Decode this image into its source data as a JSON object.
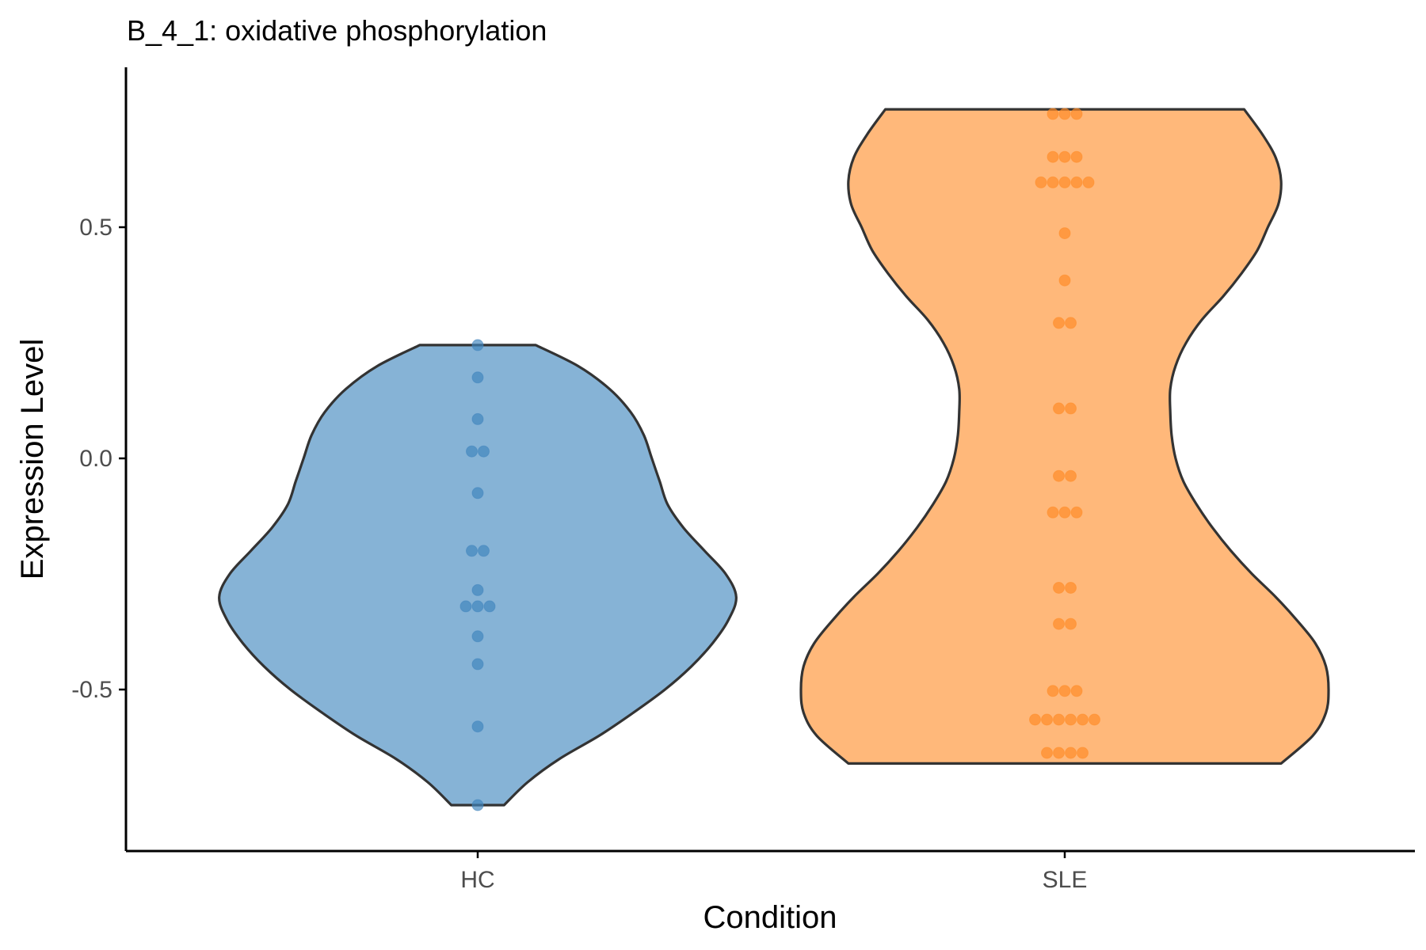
{
  "chart_data": {
    "type": "violin",
    "title": "B_4_1: oxidative phosphorylation",
    "xlabel": "Condition",
    "ylabel": "Expression Level",
    "ylim": [
      -0.85,
      0.85
    ],
    "y_ticks": [
      0.5,
      0.0,
      -0.5
    ],
    "y_tick_labels": [
      "0.5",
      "0.0",
      "-0.5"
    ],
    "grid": false,
    "legend": "none",
    "categories": [
      "HC",
      "SLE"
    ],
    "series": [
      {
        "name": "HC",
        "fill_color": "#86b3d6",
        "point_color": "#3f84bd",
        "range": [
          -0.75,
          0.245
        ],
        "violin_profile": [
          [
            -0.75,
            0.1
          ],
          [
            -0.7,
            0.19
          ],
          [
            -0.65,
            0.31
          ],
          [
            -0.6,
            0.46
          ],
          [
            -0.55,
            0.59
          ],
          [
            -0.5,
            0.71
          ],
          [
            -0.45,
            0.81
          ],
          [
            -0.4,
            0.89
          ],
          [
            -0.35,
            0.95
          ],
          [
            -0.3,
            0.98
          ],
          [
            -0.25,
            0.94
          ],
          [
            -0.2,
            0.86
          ],
          [
            -0.15,
            0.78
          ],
          [
            -0.1,
            0.72
          ],
          [
            -0.05,
            0.69
          ],
          [
            0.0,
            0.66
          ],
          [
            0.05,
            0.63
          ],
          [
            0.1,
            0.58
          ],
          [
            0.15,
            0.5
          ],
          [
            0.2,
            0.38
          ],
          [
            0.245,
            0.22
          ]
        ],
        "points": [
          0.245,
          0.175,
          0.085,
          0.015,
          0.015,
          -0.075,
          -0.2,
          -0.2,
          -0.285,
          -0.32,
          -0.32,
          -0.32,
          -0.385,
          -0.445,
          -0.58,
          -0.75
        ]
      },
      {
        "name": "SLE",
        "fill_color": "#ffb87a",
        "point_color": "#ff8b26",
        "range": [
          -0.66,
          0.755
        ],
        "violin_profile": [
          [
            -0.66,
            0.82
          ],
          [
            -0.6,
            0.94
          ],
          [
            -0.55,
            0.99
          ],
          [
            -0.5,
            1.0
          ],
          [
            -0.45,
            0.99
          ],
          [
            -0.4,
            0.95
          ],
          [
            -0.35,
            0.88
          ],
          [
            -0.3,
            0.8
          ],
          [
            -0.25,
            0.71
          ],
          [
            -0.2,
            0.63
          ],
          [
            -0.15,
            0.56
          ],
          [
            -0.1,
            0.5
          ],
          [
            -0.05,
            0.45
          ],
          [
            0.0,
            0.42
          ],
          [
            0.05,
            0.405
          ],
          [
            0.1,
            0.4
          ],
          [
            0.15,
            0.4
          ],
          [
            0.2,
            0.42
          ],
          [
            0.25,
            0.46
          ],
          [
            0.3,
            0.52
          ],
          [
            0.35,
            0.6
          ],
          [
            0.4,
            0.67
          ],
          [
            0.45,
            0.73
          ],
          [
            0.5,
            0.77
          ],
          [
            0.55,
            0.81
          ],
          [
            0.6,
            0.82
          ],
          [
            0.65,
            0.8
          ],
          [
            0.7,
            0.75
          ],
          [
            0.755,
            0.68
          ]
        ],
        "points": [
          0.745,
          0.745,
          0.745,
          0.652,
          0.652,
          0.652,
          0.597,
          0.597,
          0.597,
          0.597,
          0.597,
          0.487,
          0.385,
          0.293,
          0.293,
          0.108,
          0.108,
          -0.038,
          -0.038,
          -0.117,
          -0.117,
          -0.117,
          -0.28,
          -0.28,
          -0.358,
          -0.358,
          -0.503,
          -0.503,
          -0.503,
          -0.565,
          -0.565,
          -0.565,
          -0.565,
          -0.565,
          -0.565,
          -0.637,
          -0.637,
          -0.637,
          -0.637
        ]
      }
    ]
  }
}
